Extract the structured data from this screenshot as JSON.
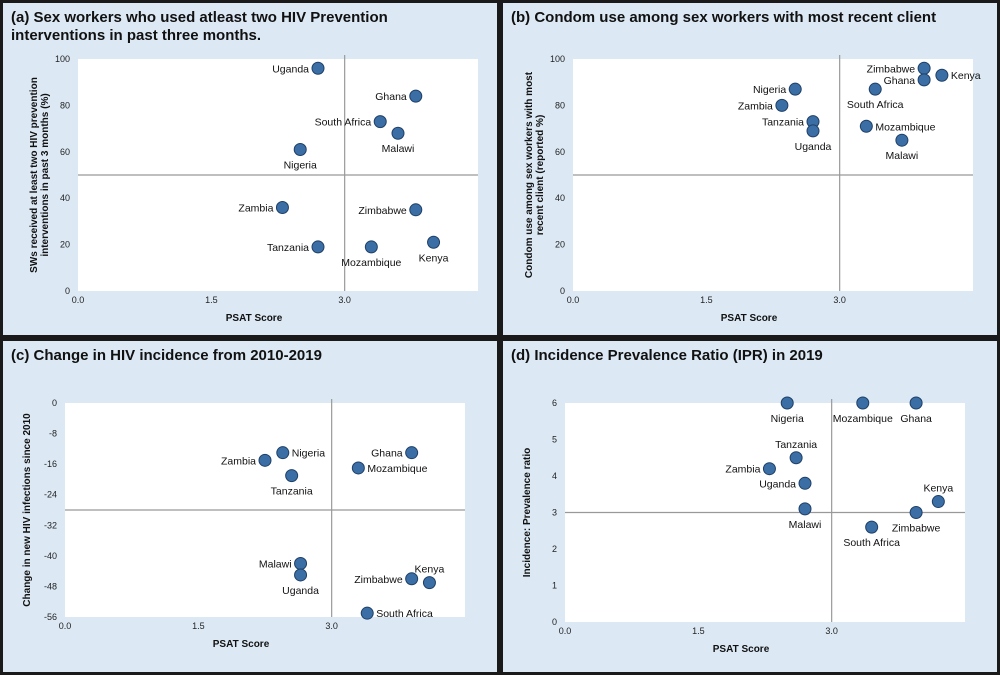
{
  "chart_data": [
    {
      "type": "scatter",
      "title": "(a) Sex workers who used atleast two HIV Prevention interventions in past three months.",
      "xlabel": "PSAT Score",
      "ylabel": "SWs received at least two HIV prevention interventions in past 3 months (%)",
      "xlim": [
        0,
        4.5
      ],
      "ylim": [
        0,
        100
      ],
      "xticks": [
        "0.0",
        "1.5",
        "3.0"
      ],
      "yticks": [
        "0",
        "20",
        "40",
        "60",
        "80",
        "100"
      ],
      "ref_x": 3.0,
      "ref_y": 50,
      "points": [
        {
          "label": "Uganda",
          "x": 2.7,
          "y": 96,
          "pos": "left"
        },
        {
          "label": "Ghana",
          "x": 3.8,
          "y": 84,
          "pos": "left"
        },
        {
          "label": "South Africa",
          "x": 3.4,
          "y": 73,
          "pos": "left"
        },
        {
          "label": "Malawi",
          "x": 3.6,
          "y": 68,
          "pos": "below"
        },
        {
          "label": "Nigeria",
          "x": 2.5,
          "y": 61,
          "pos": "below"
        },
        {
          "label": "Zambia",
          "x": 2.3,
          "y": 36,
          "pos": "left"
        },
        {
          "label": "Zimbabwe",
          "x": 3.8,
          "y": 35,
          "pos": "left"
        },
        {
          "label": "Tanzania",
          "x": 2.7,
          "y": 19,
          "pos": "left"
        },
        {
          "label": "Mozambique",
          "x": 3.3,
          "y": 19,
          "pos": "below"
        },
        {
          "label": "Kenya",
          "x": 4.0,
          "y": 21,
          "pos": "below"
        }
      ]
    },
    {
      "type": "scatter",
      "title": "(b) Condom use among sex workers with most recent client",
      "xlabel": "PSAT Score",
      "ylabel": "Condom use among sex workers with most recent client (reported %)",
      "xlim": [
        0,
        4.5
      ],
      "ylim": [
        0,
        100
      ],
      "xticks": [
        "0.0",
        "1.5",
        "3.0"
      ],
      "yticks": [
        "0",
        "20",
        "40",
        "60",
        "80",
        "100"
      ],
      "ref_x": 3.0,
      "ref_y": 50,
      "points": [
        {
          "label": "Zimbabwe",
          "x": 3.95,
          "y": 96,
          "pos": "left"
        },
        {
          "label": "Kenya",
          "x": 4.15,
          "y": 93,
          "pos": "right"
        },
        {
          "label": "Ghana",
          "x": 3.95,
          "y": 91,
          "pos": "left"
        },
        {
          "label": "Nigeria",
          "x": 2.5,
          "y": 87,
          "pos": "left"
        },
        {
          "label": "South Africa",
          "x": 3.4,
          "y": 87,
          "pos": "below"
        },
        {
          "label": "Zambia",
          "x": 2.35,
          "y": 80,
          "pos": "left"
        },
        {
          "label": "Tanzania",
          "x": 2.7,
          "y": 73,
          "pos": "left"
        },
        {
          "label": "Mozambique",
          "x": 3.3,
          "y": 71,
          "pos": "right"
        },
        {
          "label": "Uganda",
          "x": 2.7,
          "y": 69,
          "pos": "below"
        },
        {
          "label": "Malawi",
          "x": 3.7,
          "y": 65,
          "pos": "below"
        }
      ]
    },
    {
      "type": "scatter",
      "title": "(c) Change in HIV incidence from 2010-2019",
      "xlabel": "PSAT Score",
      "ylabel": "Change in new HIV infections since 2010",
      "xlim": [
        0,
        4.5
      ],
      "ylim": [
        -56,
        0
      ],
      "xticks": [
        "0.0",
        "1.5",
        "3.0"
      ],
      "yticks": [
        "-56",
        "-48",
        "-40",
        "-32",
        "-24",
        "-16",
        "-8",
        "0"
      ],
      "ref_x": 3.0,
      "ref_y": -28,
      "points": [
        {
          "label": "Zambia",
          "x": 2.25,
          "y": -15,
          "pos": "left"
        },
        {
          "label": "Nigeria",
          "x": 2.45,
          "y": -13,
          "pos": "right"
        },
        {
          "label": "Tanzania",
          "x": 2.55,
          "y": -19,
          "pos": "below"
        },
        {
          "label": "Ghana",
          "x": 3.9,
          "y": -13,
          "pos": "left"
        },
        {
          "label": "Mozambique",
          "x": 3.3,
          "y": -17,
          "pos": "right"
        },
        {
          "label": "Malawi",
          "x": 2.65,
          "y": -42,
          "pos": "left"
        },
        {
          "label": "Uganda",
          "x": 2.65,
          "y": -45,
          "pos": "below"
        },
        {
          "label": "Zimbabwe",
          "x": 3.9,
          "y": -46,
          "pos": "left"
        },
        {
          "label": "Kenya",
          "x": 4.1,
          "y": -47,
          "pos": "above"
        },
        {
          "label": "South Africa",
          "x": 3.4,
          "y": -55,
          "pos": "right"
        }
      ]
    },
    {
      "type": "scatter",
      "title": "(d) Incidence Prevalence Ratio (IPR) in 2019",
      "xlabel": "PSAT Score",
      "ylabel": "Incidence: Prevalence ratio",
      "xlim": [
        0,
        4.5
      ],
      "ylim": [
        0,
        6
      ],
      "xticks": [
        "0.0",
        "1.5",
        "3.0"
      ],
      "yticks": [
        "0",
        "1",
        "2",
        "3",
        "4",
        "5",
        "6"
      ],
      "ref_x": 3.0,
      "ref_y": 3,
      "points": [
        {
          "label": "Nigeria",
          "x": 2.5,
          "y": 6,
          "pos": "below"
        },
        {
          "label": "Mozambique",
          "x": 3.35,
          "y": 6,
          "pos": "below"
        },
        {
          "label": "Ghana",
          "x": 3.95,
          "y": 6,
          "pos": "below"
        },
        {
          "label": "Tanzania",
          "x": 2.6,
          "y": 4.5,
          "pos": "above"
        },
        {
          "label": "Zambia",
          "x": 2.3,
          "y": 4.2,
          "pos": "left"
        },
        {
          "label": "Uganda",
          "x": 2.7,
          "y": 3.8,
          "pos": "left"
        },
        {
          "label": "Malawi",
          "x": 2.7,
          "y": 3.1,
          "pos": "below"
        },
        {
          "label": "South Africa",
          "x": 3.45,
          "y": 2.6,
          "pos": "below"
        },
        {
          "label": "Kenya",
          "x": 4.2,
          "y": 3.3,
          "pos": "above"
        },
        {
          "label": "Zimbabwe",
          "x": 3.95,
          "y": 3.0,
          "pos": "below"
        }
      ]
    }
  ],
  "colors": {
    "panel_bg": "#dce9f5",
    "plot_bg": "#ffffff",
    "frame": "#1a1a1a",
    "marker_fill": "#3a6ea5",
    "marker_edge": "#1f3f66",
    "ref_line": "#999999"
  }
}
